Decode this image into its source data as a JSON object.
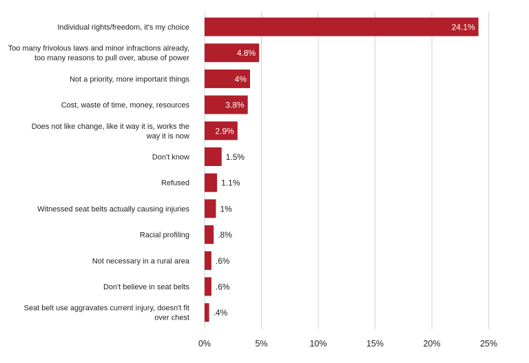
{
  "chart_data": {
    "type": "bar",
    "orientation": "horizontal",
    "title": "",
    "xlabel": "",
    "ylabel": "",
    "categories": [
      "Individual rights/freedom, it's my choice",
      "Too many frivolous laws and minor infractions already, too many reasons to pull over, abuse of power",
      "Not a priority, more important things",
      "Cost, waste of time, money, resources",
      "Does not like change, like it way it is, works the way it is now",
      "Don't know",
      "Refused",
      "Witnessed seat belts actually causing injuries",
      "Racial profiling",
      "Not necessary in a rural area",
      "Don't believe in seat belts",
      "Seat belt use aggravates current injury, doesn't fit over chest"
    ],
    "category_lines": [
      [
        "Individual rights/freedom, it's my choice"
      ],
      [
        "Too many frivolous laws and minor infractions already,",
        "too many reasons to pull over, abuse of power"
      ],
      [
        "Not a priority, more important things"
      ],
      [
        "Cost, waste of time, money, resources"
      ],
      [
        "Does not like change, like it way it is, works the",
        "way it is now"
      ],
      [
        "Don't know"
      ],
      [
        "Refused"
      ],
      [
        "Witnessed seat belts actually causing injuries"
      ],
      [
        "Racial profiling"
      ],
      [
        "Not necessary in a rural area"
      ],
      [
        "Don't believe in seat belts"
      ],
      [
        "Seat belt use aggravates current injury, doesn't fit",
        "over chest"
      ]
    ],
    "values": [
      24.1,
      4.8,
      4.0,
      3.8,
      2.9,
      1.5,
      1.1,
      1.0,
      0.8,
      0.6,
      0.6,
      0.4
    ],
    "value_labels": [
      "24.1%",
      "4.8%",
      "4%",
      "3.8%",
      "2.9%",
      "1.5%",
      "1.1%",
      "1%",
      ".8%",
      ".6%",
      ".6%",
      ".4%"
    ],
    "xlim": [
      0,
      25
    ],
    "xticks": [
      0,
      5,
      10,
      15,
      20,
      25
    ],
    "xtick_labels": [
      "0%",
      "5%",
      "10%",
      "15%",
      "20%",
      "25%"
    ],
    "grid": true,
    "legend": "none",
    "colors": {
      "bar": "#b01f2a",
      "grid": "#d3d3d3",
      "text": "#222222",
      "label_inside": "#ffffff"
    }
  }
}
